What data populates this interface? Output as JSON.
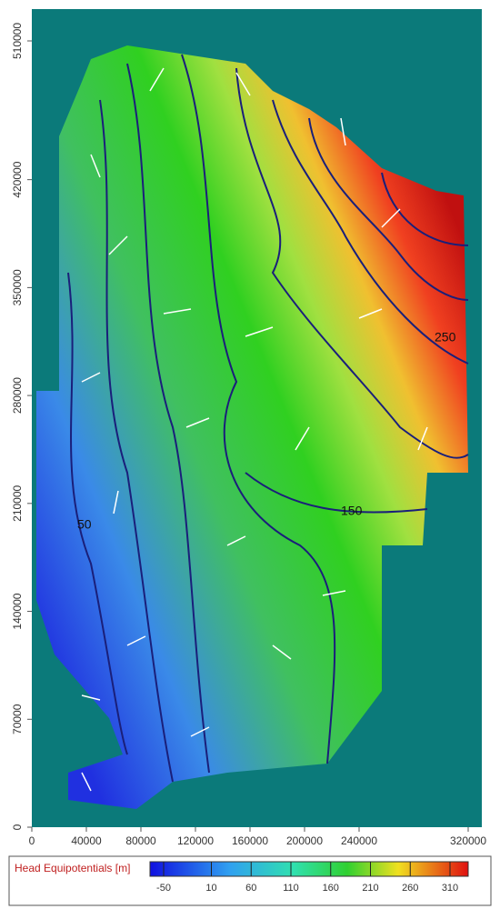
{
  "map": {
    "y_axis": {
      "ticks": [
        510000,
        420000,
        350000,
        280000,
        210000,
        140000,
        70000,
        0
      ]
    },
    "x_axis": {
      "ticks": [
        0,
        40000,
        80000,
        120000,
        160000,
        200000,
        240000,
        320000
      ]
    },
    "contour_labels": [
      "250",
      "150",
      "50"
    ],
    "legend": {
      "title": "Head Equipotentials [m]",
      "levels": [
        -50,
        10,
        60,
        110,
        160,
        210,
        260,
        310
      ]
    }
  }
}
